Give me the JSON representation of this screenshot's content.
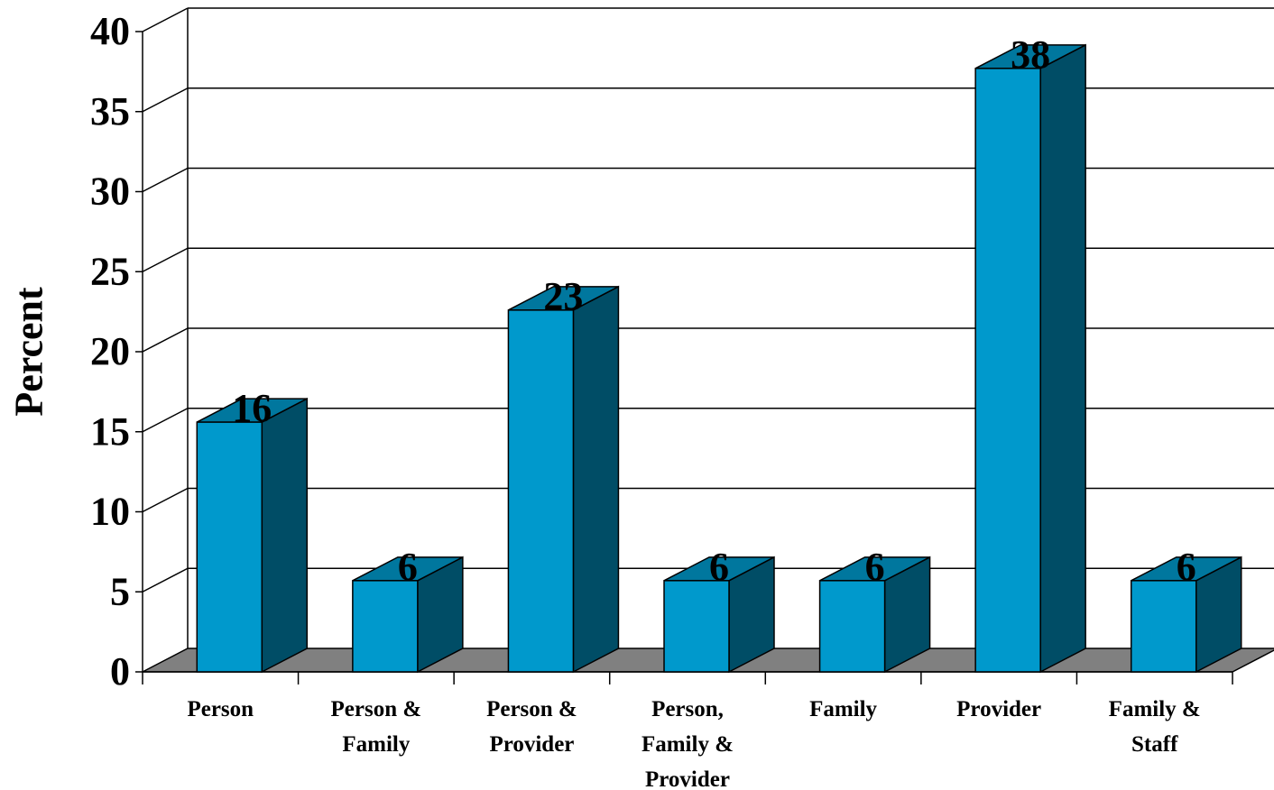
{
  "chart_data": {
    "type": "bar",
    "style": "3d",
    "ylabel": "Percent",
    "xlabel": "",
    "ylim": [
      0,
      40
    ],
    "yticks": [
      0,
      5,
      10,
      15,
      20,
      25,
      30,
      35,
      40
    ],
    "grid": true,
    "legend": "none",
    "categories": [
      [
        "Person"
      ],
      [
        "Person &",
        "Family"
      ],
      [
        "Person &",
        "Provider"
      ],
      [
        "Person,",
        "Family &",
        "Provider"
      ],
      [
        "Family"
      ],
      [
        "Provider"
      ],
      [
        "Family  &",
        "Staff"
      ]
    ],
    "values": [
      15.6,
      5.7,
      22.6,
      5.7,
      5.7,
      37.7,
      5.7
    ],
    "data_labels": [
      "16",
      "6",
      "23",
      "6",
      "6",
      "38",
      "6"
    ],
    "colors": {
      "bar_front": "#0099cc",
      "bar_side": "#004d66",
      "bar_top": "#00779e",
      "floor": "#808080",
      "grid": "#000000"
    }
  }
}
